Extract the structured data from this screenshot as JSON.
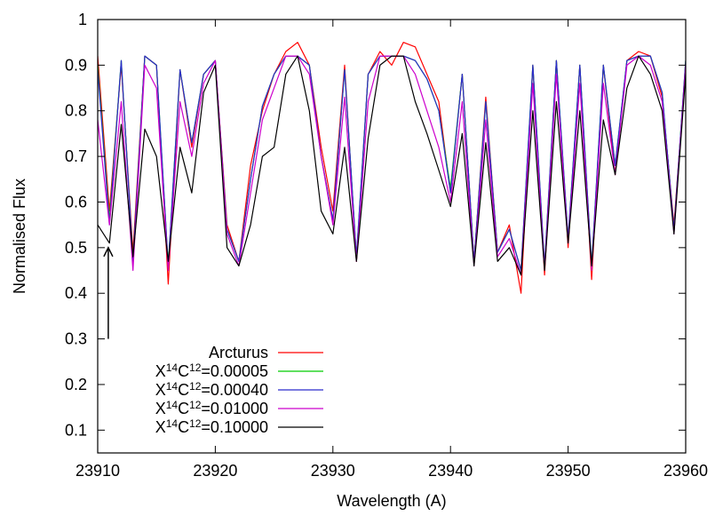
{
  "chart_data": {
    "type": "line",
    "xlabel": "Wavelength (A)",
    "ylabel": "Normalised Flux",
    "xlim": [
      23910,
      23960
    ],
    "ylim": [
      0.05,
      1.0
    ],
    "xticks": [
      23910,
      23920,
      23930,
      23940,
      23950,
      23960
    ],
    "xtick_labels": [
      "23910",
      "23920",
      "23930",
      "23940",
      "23950",
      "23960"
    ],
    "yticks": [
      0.1,
      0.2,
      0.3,
      0.4,
      0.5,
      0.6,
      0.7,
      0.8,
      0.9,
      1.0
    ],
    "ytick_labels": [
      "0.1",
      "0.2",
      "0.3",
      "0.4",
      "0.5",
      "0.6",
      "0.7",
      "0.8",
      "0.9",
      "1"
    ],
    "grid": false,
    "legend_position": "bottom-left",
    "annotation": {
      "type": "arrow",
      "x": 23910.9,
      "y_from": 0.3,
      "y_to": 0.5
    },
    "series": [
      {
        "name": "Arcturus",
        "label_parts": [
          "Arcturus"
        ],
        "color": "#ff0000",
        "x": [
          23910,
          23911,
          23912,
          23913,
          23914,
          23915,
          23916,
          23917,
          23918,
          23919,
          23920,
          23921,
          23922,
          23923,
          23924,
          23925,
          23926,
          23927,
          23928,
          23929,
          23930,
          23931,
          23932,
          23933,
          23934,
          23935,
          23936,
          23937,
          23938,
          23939,
          23940,
          23941,
          23942,
          23943,
          23944,
          23945,
          23946,
          23947,
          23948,
          23949,
          23950,
          23951,
          23952,
          23953,
          23954,
          23955,
          23956,
          23957,
          23958,
          23959,
          23960
        ],
        "y": [
          0.92,
          0.58,
          0.9,
          0.49,
          0.92,
          0.9,
          0.42,
          0.89,
          0.72,
          0.88,
          0.91,
          0.55,
          0.47,
          0.68,
          0.8,
          0.88,
          0.93,
          0.95,
          0.9,
          0.72,
          0.58,
          0.9,
          0.47,
          0.88,
          0.93,
          0.9,
          0.95,
          0.94,
          0.88,
          0.82,
          0.62,
          0.88,
          0.47,
          0.83,
          0.49,
          0.55,
          0.4,
          0.9,
          0.44,
          0.91,
          0.5,
          0.9,
          0.43,
          0.9,
          0.66,
          0.91,
          0.93,
          0.92,
          0.83,
          0.55,
          0.9
        ]
      },
      {
        "name": "X14C12=0.00005",
        "label_parts": [
          "X",
          "14",
          "C",
          "12",
          "=0.00005"
        ],
        "color": "#00cc00",
        "x": [
          23910,
          23911,
          23912,
          23913,
          23914,
          23915,
          23916,
          23917,
          23918,
          23919,
          23920,
          23921,
          23922,
          23923,
          23924,
          23925,
          23926,
          23927,
          23928,
          23929,
          23930,
          23931,
          23932,
          23933,
          23934,
          23935,
          23936,
          23937,
          23938,
          23939,
          23940,
          23941,
          23942,
          23943,
          23944,
          23945,
          23946,
          23947,
          23948,
          23949,
          23950,
          23951,
          23952,
          23953,
          23954,
          23955,
          23956,
          23957,
          23958,
          23959,
          23960
        ],
        "y": [
          0.9,
          0.56,
          0.91,
          0.47,
          0.92,
          0.9,
          0.46,
          0.89,
          0.73,
          0.88,
          0.91,
          0.54,
          0.47,
          0.65,
          0.81,
          0.88,
          0.92,
          0.92,
          0.9,
          0.7,
          0.56,
          0.89,
          0.48,
          0.88,
          0.92,
          0.92,
          0.92,
          0.91,
          0.87,
          0.8,
          0.63,
          0.88,
          0.47,
          0.82,
          0.49,
          0.54,
          0.45,
          0.9,
          0.46,
          0.91,
          0.52,
          0.9,
          0.46,
          0.9,
          0.68,
          0.91,
          0.92,
          0.92,
          0.84,
          0.54,
          0.91
        ]
      },
      {
        "name": "X14C12=0.00040",
        "label_parts": [
          "X",
          "14",
          "C",
          "12",
          "=0.00040"
        ],
        "color": "#2b2bcc",
        "x": [
          23910,
          23911,
          23912,
          23913,
          23914,
          23915,
          23916,
          23917,
          23918,
          23919,
          23920,
          23921,
          23922,
          23923,
          23924,
          23925,
          23926,
          23927,
          23928,
          23929,
          23930,
          23931,
          23932,
          23933,
          23934,
          23935,
          23936,
          23937,
          23938,
          23939,
          23940,
          23941,
          23942,
          23943,
          23944,
          23945,
          23946,
          23947,
          23948,
          23949,
          23950,
          23951,
          23952,
          23953,
          23954,
          23955,
          23956,
          23957,
          23958,
          23959,
          23960
        ],
        "y": [
          0.89,
          0.55,
          0.91,
          0.47,
          0.92,
          0.9,
          0.46,
          0.89,
          0.73,
          0.88,
          0.91,
          0.54,
          0.47,
          0.65,
          0.81,
          0.88,
          0.92,
          0.92,
          0.9,
          0.7,
          0.56,
          0.89,
          0.48,
          0.88,
          0.92,
          0.92,
          0.92,
          0.91,
          0.87,
          0.8,
          0.62,
          0.88,
          0.47,
          0.82,
          0.49,
          0.54,
          0.45,
          0.9,
          0.46,
          0.91,
          0.52,
          0.9,
          0.46,
          0.9,
          0.68,
          0.91,
          0.92,
          0.92,
          0.84,
          0.54,
          0.91
        ]
      },
      {
        "name": "X14C12=0.01000",
        "label_parts": [
          "X",
          "14",
          "C",
          "12",
          "=0.01000"
        ],
        "color": "#cc00cc",
        "x": [
          23910,
          23911,
          23912,
          23913,
          23914,
          23915,
          23916,
          23917,
          23918,
          23919,
          23920,
          23921,
          23922,
          23923,
          23924,
          23925,
          23926,
          23927,
          23928,
          23929,
          23930,
          23931,
          23932,
          23933,
          23934,
          23935,
          23936,
          23937,
          23938,
          23939,
          23940,
          23941,
          23942,
          23943,
          23944,
          23945,
          23946,
          23947,
          23948,
          23949,
          23950,
          23951,
          23952,
          23953,
          23954,
          23955,
          23956,
          23957,
          23958,
          23959,
          23960
        ],
        "y": [
          0.78,
          0.55,
          0.82,
          0.45,
          0.9,
          0.85,
          0.45,
          0.82,
          0.7,
          0.86,
          0.91,
          0.53,
          0.46,
          0.62,
          0.78,
          0.85,
          0.92,
          0.92,
          0.88,
          0.7,
          0.55,
          0.83,
          0.47,
          0.82,
          0.92,
          0.92,
          0.92,
          0.88,
          0.8,
          0.72,
          0.6,
          0.82,
          0.46,
          0.78,
          0.48,
          0.52,
          0.44,
          0.86,
          0.45,
          0.88,
          0.51,
          0.86,
          0.45,
          0.86,
          0.66,
          0.9,
          0.92,
          0.9,
          0.82,
          0.53,
          0.9
        ]
      },
      {
        "name": "X14C12=0.10000",
        "label_parts": [
          "X",
          "14",
          "C",
          "12",
          "=0.10000"
        ],
        "color": "#000000",
        "x": [
          23910,
          23911,
          23912,
          23913,
          23914,
          23915,
          23916,
          23917,
          23918,
          23919,
          23920,
          23921,
          23922,
          23923,
          23924,
          23925,
          23926,
          23927,
          23928,
          23929,
          23930,
          23931,
          23932,
          23933,
          23934,
          23935,
          23936,
          23937,
          23938,
          23939,
          23940,
          23941,
          23942,
          23943,
          23944,
          23945,
          23946,
          23947,
          23948,
          23949,
          23950,
          23951,
          23952,
          23953,
          23954,
          23955,
          23956,
          23957,
          23958,
          23959,
          23960
        ],
        "y": [
          0.55,
          0.51,
          0.77,
          0.48,
          0.76,
          0.7,
          0.47,
          0.72,
          0.62,
          0.84,
          0.9,
          0.5,
          0.46,
          0.55,
          0.7,
          0.72,
          0.88,
          0.92,
          0.8,
          0.58,
          0.53,
          0.72,
          0.47,
          0.74,
          0.9,
          0.92,
          0.92,
          0.82,
          0.75,
          0.67,
          0.59,
          0.75,
          0.46,
          0.73,
          0.47,
          0.5,
          0.44,
          0.8,
          0.45,
          0.82,
          0.51,
          0.8,
          0.46,
          0.78,
          0.66,
          0.85,
          0.92,
          0.88,
          0.8,
          0.53,
          0.88
        ]
      }
    ]
  }
}
